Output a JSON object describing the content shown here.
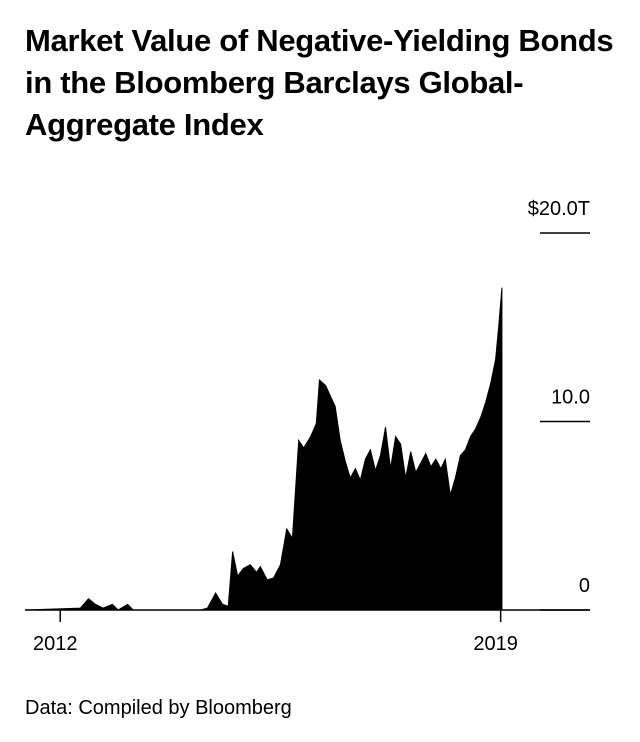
{
  "chart_data": {
    "type": "area",
    "title": "Market Value of Negative-Yielding Bonds in the Bloomberg Barclays Global-Aggregate Index",
    "source": "Data: Compiled by Bloomberg",
    "color": "#000000",
    "x": [
      2011.44,
      2012.32,
      2012.45,
      2012.56,
      2012.68,
      2012.83,
      2012.92,
      2013.07,
      2013.16,
      2014.23,
      2014.34,
      2014.47,
      2014.58,
      2014.67,
      2014.74,
      2014.82,
      2014.91,
      2015.02,
      2015.12,
      2015.18,
      2015.29,
      2015.39,
      2015.5,
      2015.6,
      2015.69,
      2015.79,
      2015.87,
      2015.98,
      2016.07,
      2016.12,
      2016.22,
      2016.3,
      2016.37,
      2016.45,
      2016.53,
      2016.61,
      2016.69,
      2016.77,
      2016.85,
      2016.93,
      2017.01,
      2017.09,
      2017.17,
      2017.25,
      2017.33,
      2017.41,
      2017.49,
      2017.57,
      2017.65,
      2017.73,
      2017.81,
      2017.89,
      2017.97,
      2018.05,
      2018.12,
      2018.2,
      2018.28,
      2018.36,
      2018.44,
      2018.52,
      2018.6,
      2018.68,
      2018.76,
      2018.84,
      2018.92,
      2018.97,
      2019.02
    ],
    "values": [
      0,
      0.1,
      0.6,
      0.3,
      0.1,
      0.3,
      0,
      0.3,
      0,
      0,
      0.1,
      0.9,
      0.3,
      0.2,
      3.1,
      1.8,
      2.2,
      2.4,
      2.0,
      2.3,
      1.6,
      1.7,
      2.4,
      4.3,
      3.8,
      9.0,
      8.6,
      9.2,
      9.9,
      12.2,
      11.9,
      11.3,
      10.8,
      9.0,
      7.9,
      7.0,
      7.5,
      6.9,
      8.0,
      8.5,
      7.4,
      8.2,
      9.7,
      7.5,
      9.2,
      8.8,
      7.0,
      8.4,
      7.3,
      7.8,
      8.3,
      7.6,
      8.0,
      7.5,
      8.0,
      6.1,
      7.0,
      8.2,
      8.5,
      9.2,
      9.6,
      10.2,
      11.0,
      12.0,
      13.3,
      15.1,
      17.1
    ],
    "xlim": [
      2011.44,
      2020.42
    ],
    "xticks": [
      2012,
      2019
    ],
    "ylim": [
      0,
      20
    ],
    "yticks": [
      0,
      {
        "value": 10,
        "label": "10.0"
      },
      {
        "value": 20,
        "label": "$20.0T"
      }
    ]
  }
}
